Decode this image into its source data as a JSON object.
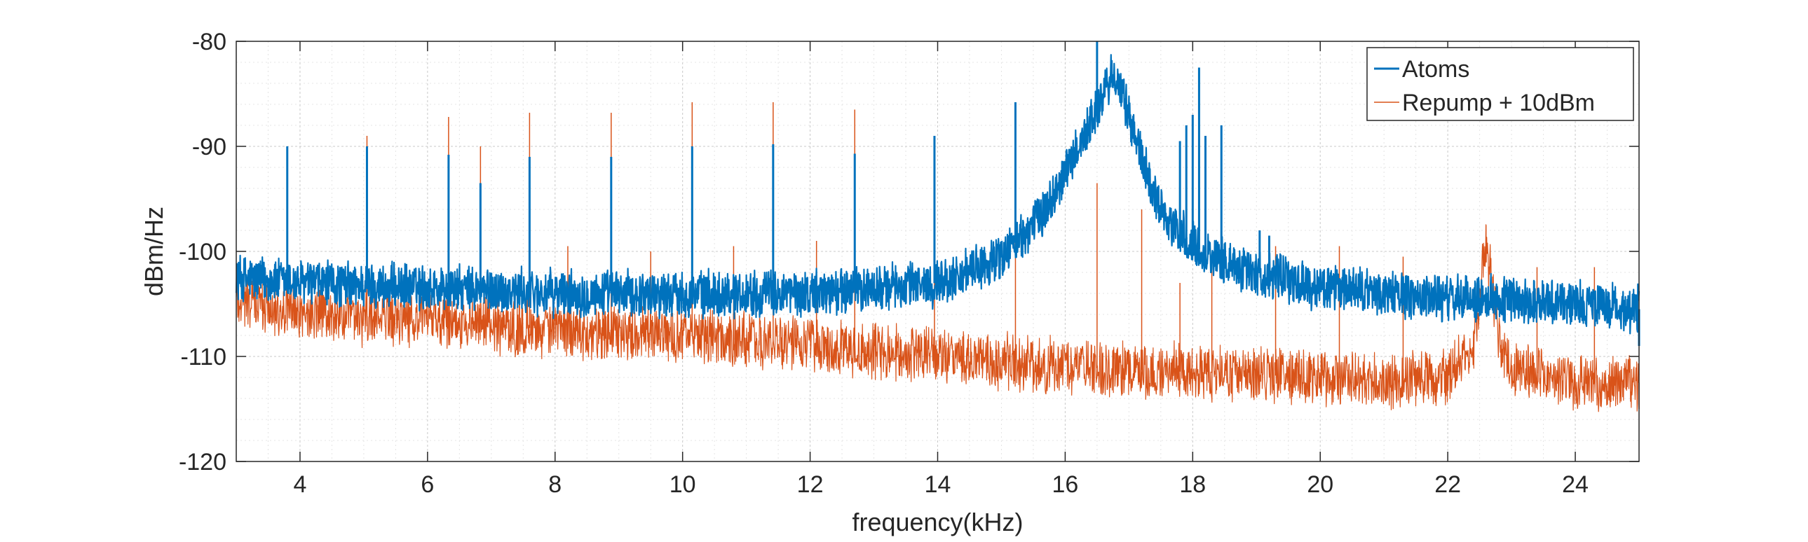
{
  "chart_data": {
    "type": "line",
    "title": "",
    "xlabel": "frequency(kHz)",
    "ylabel": "dBm/Hz",
    "xlim": [
      3,
      25
    ],
    "ylim": [
      -120,
      -80
    ],
    "x_ticks": [
      4,
      6,
      8,
      10,
      12,
      14,
      16,
      18,
      20,
      22,
      24
    ],
    "y_ticks": [
      -80,
      -90,
      -100,
      -110,
      -120
    ],
    "grid": "major and minor, dotted",
    "legend_placement": "top-right",
    "series": [
      {
        "name": "Atoms",
        "color": "#0072BD",
        "line_width": "thick",
        "noise_band": 2.5,
        "baseline": [
          [
            3,
            -102.5
          ],
          [
            4,
            -103
          ],
          [
            6,
            -103.5
          ],
          [
            8,
            -104
          ],
          [
            10,
            -104
          ],
          [
            12,
            -104
          ],
          [
            13,
            -103.5
          ],
          [
            14,
            -103
          ],
          [
            14.5,
            -102
          ],
          [
            15,
            -100.5
          ],
          [
            15.5,
            -97.5
          ],
          [
            15.8,
            -95
          ],
          [
            16,
            -92.5
          ],
          [
            16.3,
            -89
          ],
          [
            16.5,
            -86.5
          ],
          [
            16.75,
            -83
          ],
          [
            17,
            -87
          ],
          [
            17.3,
            -93
          ],
          [
            17.6,
            -97
          ],
          [
            18,
            -99.5
          ],
          [
            18.5,
            -101
          ],
          [
            19,
            -102
          ],
          [
            20,
            -103.5
          ],
          [
            21,
            -104
          ],
          [
            22,
            -104.5
          ],
          [
            23,
            -104.5
          ],
          [
            24,
            -105
          ],
          [
            25,
            -105.5
          ]
        ],
        "spikes": [
          [
            3.8,
            -90
          ],
          [
            5.05,
            -90
          ],
          [
            6.33,
            -90.8
          ],
          [
            6.83,
            -93.5
          ],
          [
            7.6,
            -91
          ],
          [
            8.88,
            -91
          ],
          [
            10.15,
            -90
          ],
          [
            11.42,
            -89.8
          ],
          [
            12.7,
            -90.7
          ],
          [
            13.95,
            -89
          ],
          [
            15.22,
            -85.8
          ],
          [
            16.5,
            -80
          ],
          [
            17.8,
            -89.5
          ],
          [
            17.9,
            -88
          ],
          [
            18.0,
            -87
          ],
          [
            18.1,
            -82.5
          ],
          [
            18.2,
            -89
          ],
          [
            18.45,
            -88
          ],
          [
            19.05,
            -98
          ],
          [
            19.2,
            -98.5
          ],
          [
            25,
            -109
          ]
        ]
      },
      {
        "name": "Repump + 10dBm",
        "color": "#D95319",
        "line_width": "thin",
        "noise_band": 3,
        "baseline": [
          [
            3,
            -104.5
          ],
          [
            4,
            -106
          ],
          [
            6,
            -106.5
          ],
          [
            8,
            -107.5
          ],
          [
            10,
            -108
          ],
          [
            12,
            -109
          ],
          [
            14,
            -110
          ],
          [
            16,
            -111
          ],
          [
            18,
            -111.5
          ],
          [
            20,
            -112
          ],
          [
            21,
            -112.3
          ],
          [
            22,
            -112
          ],
          [
            22.4,
            -109
          ],
          [
            22.6,
            -99
          ],
          [
            22.8,
            -108
          ],
          [
            23,
            -111
          ],
          [
            24,
            -112.5
          ],
          [
            25,
            -112.5
          ]
        ],
        "spikes": [
          [
            3.8,
            -94
          ],
          [
            5.05,
            -89
          ],
          [
            6.33,
            -87.2
          ],
          [
            6.83,
            -90
          ],
          [
            7.6,
            -86.8
          ],
          [
            8.2,
            -99.5
          ],
          [
            8.88,
            -86.8
          ],
          [
            9.5,
            -100
          ],
          [
            10.15,
            -85.8
          ],
          [
            10.8,
            -99.5
          ],
          [
            11.42,
            -85.8
          ],
          [
            12.1,
            -99
          ],
          [
            12.7,
            -86.5
          ],
          [
            13.95,
            -91
          ],
          [
            15.22,
            -94
          ],
          [
            16.5,
            -93.5
          ],
          [
            17.2,
            -96
          ],
          [
            17.8,
            -103
          ],
          [
            18.3,
            -101
          ],
          [
            19.3,
            -99.5
          ],
          [
            20.3,
            -99.5
          ],
          [
            21.3,
            -100.5
          ],
          [
            22.6,
            -97.5
          ],
          [
            23.4,
            -101.5
          ],
          [
            24.3,
            -101.5
          ],
          [
            25,
            -115
          ]
        ]
      }
    ]
  }
}
